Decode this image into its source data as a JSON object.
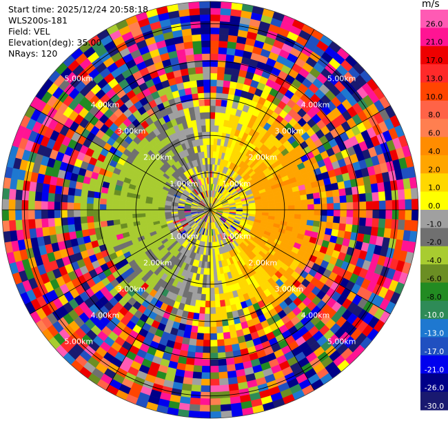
{
  "info": {
    "start_time": "Start time: 2025/12/24 20:58:18",
    "instrument": "WLS200s-181",
    "field": "Field: VEL",
    "elevation": "Elevation(deg): 35.00",
    "nrays": "NRays: 120"
  },
  "colorbar": {
    "unit": "m/s",
    "ticks": [
      "26.0",
      "21.0",
      "17.0",
      "13.0",
      "10.0",
      "8.0",
      "6.0",
      "4.0",
      "2.0",
      "1.0",
      "0.0",
      "-1.0",
      "-2.0",
      "-4.0",
      "-6.0",
      "-8.0",
      "-10.0",
      "-13.0",
      "-17.0",
      "-21.0",
      "-26.0",
      "-30.0"
    ],
    "colors": [
      "#ff5ab4",
      "#ff1493",
      "#ee0000",
      "#ff2a2a",
      "#ff4500",
      "#ff6347",
      "#ff7f50",
      "#ff8c00",
      "#ffa500",
      "#ffd700",
      "#ffff00",
      "#a0a0a0",
      "#707070",
      "#a8cc30",
      "#6b8e23",
      "#228b22",
      "#2e8b57",
      "#1e78d0",
      "#2050c0",
      "#0000ee",
      "#000088",
      "#191970"
    ]
  },
  "chart_data": {
    "type": "ppi",
    "field": "VEL",
    "units": "m/s",
    "elevation_deg": 35.0,
    "nrays": 120,
    "range_rings_km": [
      1.0,
      2.0,
      3.0,
      4.0,
      5.0
    ],
    "range_labels": [
      "1.00km",
      "2.00km",
      "3.00km",
      "4.00km",
      "5.00km"
    ],
    "max_range_km": 5.6,
    "value_range": [
      -30.0,
      26.0
    ],
    "description_regions": [
      {
        "name": "near-center",
        "range_km": [
          0,
          1.5
        ],
        "dominant": "grey ~0 m/s"
      },
      {
        "name": "east-inner",
        "range_km": [
          0.5,
          3.0
        ],
        "azimuth_deg": [
          20,
          160
        ],
        "dominant": "yellow 1-4 m/s"
      },
      {
        "name": "west-inner",
        "range_km": [
          0.5,
          3.0
        ],
        "azimuth_deg": [
          200,
          340
        ],
        "dominant": "olive/green -1 to -6 m/s"
      },
      {
        "name": "outer",
        "range_km": [
          3.0,
          5.6
        ],
        "dominant": "noise across full scale"
      }
    ]
  }
}
